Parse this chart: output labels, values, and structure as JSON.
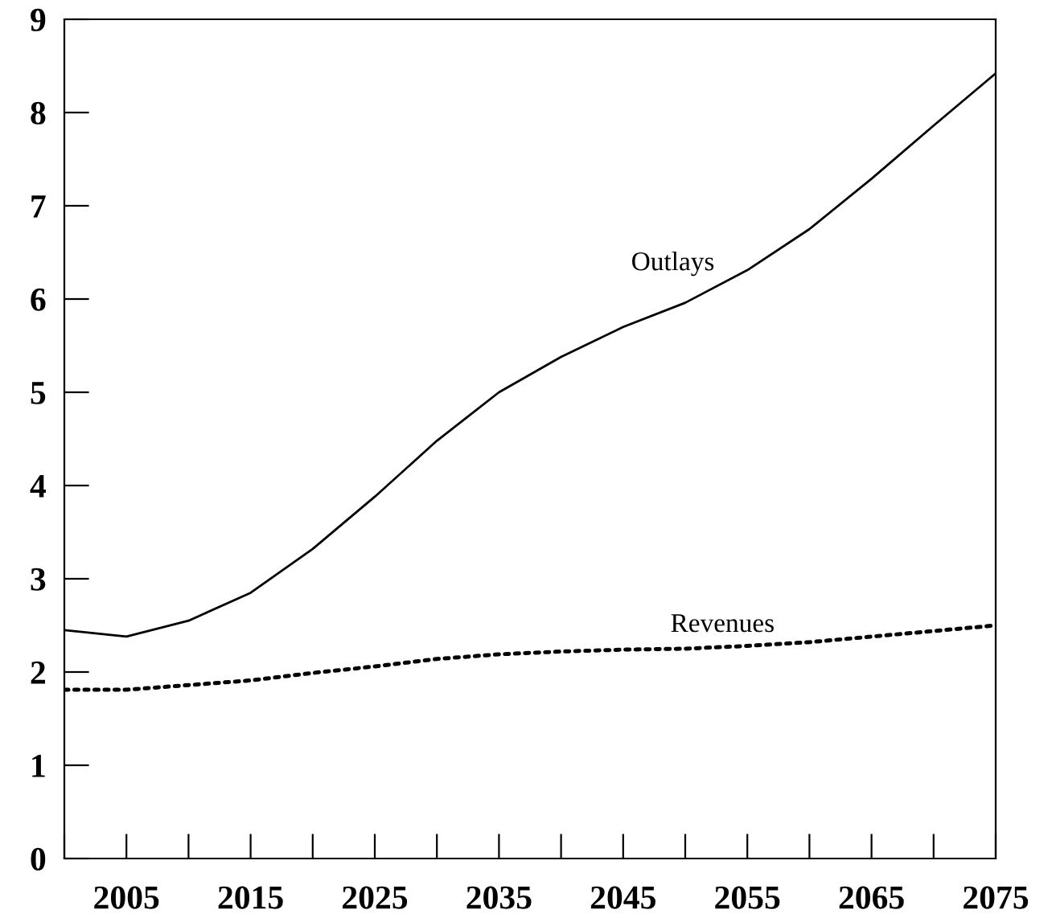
{
  "chart_data": {
    "type": "line",
    "x": [
      2000,
      2005,
      2010,
      2015,
      2020,
      2025,
      2030,
      2035,
      2040,
      2045,
      2050,
      2055,
      2060,
      2065,
      2070,
      2075
    ],
    "series": [
      {
        "name": "Outlays",
        "color": "#000000",
        "line_style": "solid",
        "values": [
          2.45,
          2.38,
          2.55,
          2.85,
          3.32,
          3.88,
          4.48,
          5.0,
          5.38,
          5.7,
          5.96,
          6.31,
          6.75,
          7.29,
          7.86,
          8.42
        ]
      },
      {
        "name": "Revenues",
        "color": "#000000",
        "line_style": "dotted",
        "values": [
          1.81,
          1.81,
          1.86,
          1.91,
          1.99,
          2.06,
          2.14,
          2.19,
          2.22,
          2.24,
          2.25,
          2.28,
          2.32,
          2.38,
          2.44,
          2.5
        ]
      }
    ],
    "xlim": [
      2000,
      2075
    ],
    "xticks": [
      {
        "value": 2000,
        "label": null
      },
      2005,
      {
        "value": 2010,
        "label": null
      },
      2015,
      {
        "value": 2020,
        "label": null
      },
      2025,
      {
        "value": 2030,
        "label": null
      },
      2035,
      {
        "value": 2040,
        "label": null
      },
      2045,
      {
        "value": 2050,
        "label": null
      },
      2055,
      {
        "value": 2060,
        "label": null
      },
      2065,
      {
        "value": 2070,
        "label": null
      },
      2075
    ],
    "ylim": [
      0,
      9
    ],
    "yticks": [
      0,
      1,
      2,
      3,
      4,
      5,
      6,
      7,
      8,
      9
    ],
    "grid": false,
    "legend": false,
    "marker": "none"
  }
}
